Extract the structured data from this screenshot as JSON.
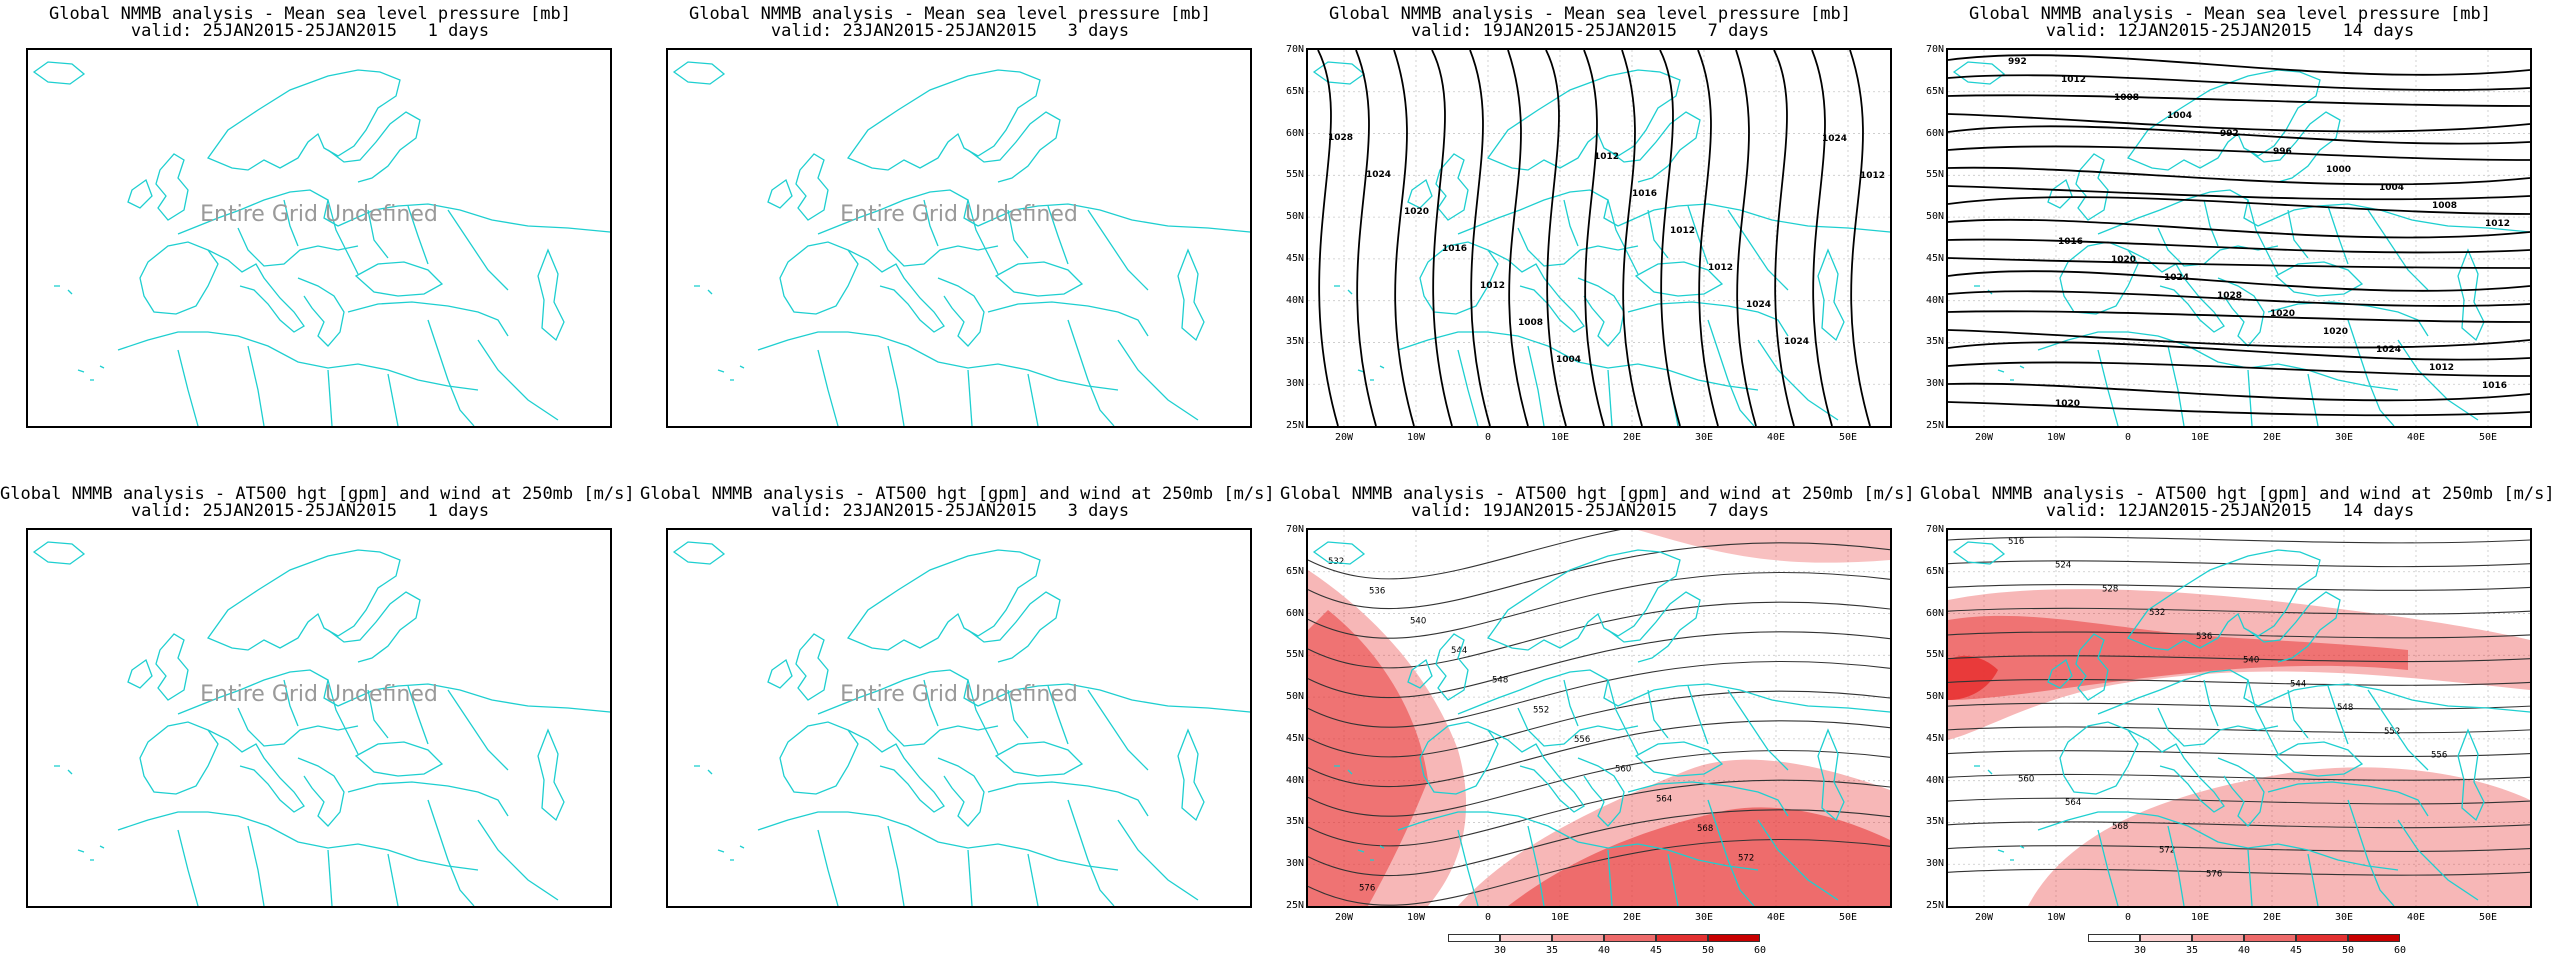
{
  "panels": [
    {
      "title_line1": "Global NMMB analysis - Mean sea level pressure [mb]",
      "title_line2": "valid: 25JAN2015-25JAN2015   1 days",
      "undefined_label": "Entire Grid Undefined",
      "has_data": false
    },
    {
      "title_line1": "Global NMMB analysis - Mean sea level pressure [mb]",
      "title_line2": "valid: 23JAN2015-25JAN2015   3 days",
      "undefined_label": "Entire Grid Undefined",
      "has_data": false
    },
    {
      "title_line1": "Global NMMB analysis - Mean sea level pressure [mb]",
      "title_line2": "valid: 19JAN2015-25JAN2015   7 days",
      "has_data": true,
      "field": "mslp",
      "contour_labels": [
        "1028",
        "1024",
        "1020",
        "1016",
        "1012",
        "1008",
        "1004",
        "1012",
        "1016",
        "1012",
        "1012",
        "1024",
        "1024",
        "1024",
        "1012"
      ]
    },
    {
      "title_line1": "Global NMMB analysis - Mean sea level pressure [mb]",
      "title_line2": "valid: 12JAN2015-25JAN2015   14 days",
      "has_data": true,
      "field": "mslp",
      "contour_labels": [
        "992",
        "1012",
        "1008",
        "1004",
        "992",
        "996",
        "1000",
        "1004",
        "1008",
        "1012",
        "1016",
        "1020",
        "1024",
        "1028",
        "1020",
        "1020",
        "1024",
        "1012",
        "1016",
        "1020"
      ]
    },
    {
      "title_line1": "Global NMMB analysis - AT500 hgt [gpm] and wind at 250mb [m/s]",
      "title_line2": "valid: 25JAN2015-25JAN2015   1 days",
      "undefined_label": "Entire Grid Undefined",
      "has_data": false
    },
    {
      "title_line1": "Global NMMB analysis - AT500 hgt [gpm] and wind at 250mb [m/s]",
      "title_line2": "valid: 23JAN2015-25JAN2015   3 days",
      "undefined_label": "Entire Grid Undefined",
      "has_data": false
    },
    {
      "title_line1": "Global NMMB analysis - AT500 hgt [gpm] and wind at 250mb [m/s]",
      "title_line2": "valid: 19JAN2015-25JAN2015   7 days",
      "has_data": true,
      "field": "z500",
      "contour_labels": [
        "532",
        "536",
        "540",
        "544",
        "548",
        "552",
        "556",
        "560",
        "564",
        "568",
        "572",
        "576"
      ]
    },
    {
      "title_line1": "Global NMMB analysis - AT500 hgt [gpm] and wind at 250mb [m/s]",
      "title_line2": "valid: 12JAN2015-25JAN2015   14 days",
      "has_data": true,
      "field": "z500",
      "contour_labels": [
        "516",
        "524",
        "528",
        "532",
        "536",
        "540",
        "544",
        "548",
        "552",
        "556",
        "560",
        "564",
        "568",
        "572",
        "576"
      ]
    }
  ],
  "axes": {
    "y_ticks": [
      "70N",
      "65N",
      "60N",
      "55N",
      "50N",
      "45N",
      "40N",
      "35N",
      "30N",
      "25N"
    ],
    "x_ticks": [
      "20W",
      "10W",
      "0",
      "10E",
      "20E",
      "30E",
      "40E",
      "50E"
    ]
  },
  "colorbar": {
    "labels": [
      "30",
      "35",
      "40",
      "45",
      "50",
      "60"
    ],
    "colors": [
      "#ffffff",
      "#fbd0d0",
      "#f5a0a0",
      "#ee6a6a",
      "#e33030",
      "#c80000"
    ],
    "unit": "m/s"
  },
  "colors": {
    "coastline": "#1ecfd0",
    "contour": "#000000",
    "grid": "#c8c8c8",
    "jet_fill": "#e83030"
  }
}
